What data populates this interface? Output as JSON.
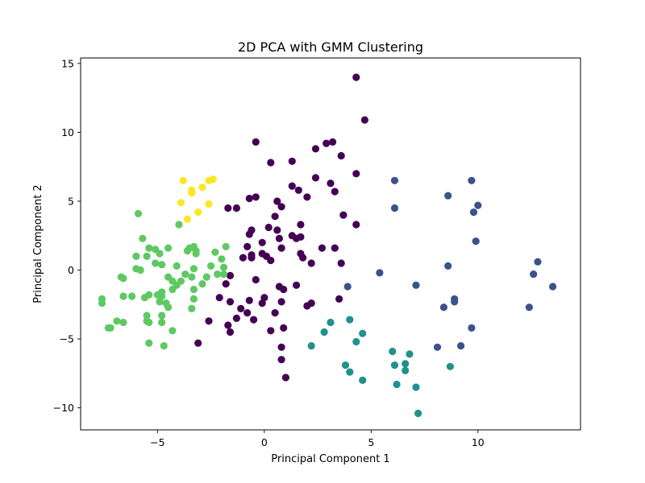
{
  "chart_data": {
    "type": "scatter",
    "title": "2D PCA with GMM Clustering",
    "xlabel": "Principal Component 1",
    "ylabel": "Principal Component 2",
    "xlim": [
      -8.6,
      14.8
    ],
    "ylim": [
      -11.6,
      15.4
    ],
    "xticks": [
      -5,
      0,
      5,
      10
    ],
    "yticks": [
      -10,
      -5,
      0,
      5,
      10,
      15
    ],
    "xtick_labels": [
      "−5",
      "0",
      "5",
      "10"
    ],
    "ytick_labels": [
      "−10",
      "−5",
      "0",
      "5",
      "10",
      "15"
    ],
    "grid": false,
    "legend": "none",
    "series": [
      {
        "color": "#440154",
        "points": [
          [
            4.3,
            14.0
          ],
          [
            4.7,
            10.9
          ],
          [
            -0.4,
            9.3
          ],
          [
            2.9,
            9.2
          ],
          [
            3.2,
            9.3
          ],
          [
            2.4,
            8.8
          ],
          [
            3.6,
            8.3
          ],
          [
            0.3,
            7.8
          ],
          [
            1.3,
            7.9
          ],
          [
            3.1,
            6.3
          ],
          [
            4.3,
            7.0
          ],
          [
            2.4,
            6.7
          ],
          [
            1.3,
            6.1
          ],
          [
            1.6,
            5.8
          ],
          [
            3.3,
            5.7
          ],
          [
            2.0,
            5.3
          ],
          [
            -0.7,
            5.2
          ],
          [
            -0.4,
            5.3
          ],
          [
            0.6,
            5.0
          ],
          [
            0.8,
            4.6
          ],
          [
            -1.3,
            4.5
          ],
          [
            -1.7,
            4.5
          ],
          [
            0.5,
            3.9
          ],
          [
            3.7,
            4.0
          ],
          [
            4.3,
            3.3
          ],
          [
            1.7,
            3.3
          ],
          [
            0.2,
            3.1
          ],
          [
            -0.6,
            2.9
          ],
          [
            0.6,
            2.9
          ],
          [
            -0.7,
            2.6
          ],
          [
            1.3,
            2.5
          ],
          [
            0.7,
            2.3
          ],
          [
            1.5,
            2.3
          ],
          [
            1.7,
            2.4
          ],
          [
            -0.1,
            2.0
          ],
          [
            -0.8,
            1.7
          ],
          [
            0.8,
            1.6
          ],
          [
            2.7,
            1.6
          ],
          [
            3.3,
            1.6
          ],
          [
            1.7,
            1.2
          ],
          [
            -0.6,
            1.1
          ],
          [
            -0.1,
            1.2
          ],
          [
            0.1,
            1.0
          ],
          [
            -1.0,
            0.9
          ],
          [
            -0.6,
            0.9
          ],
          [
            1.8,
            0.9
          ],
          [
            0.3,
            0.7
          ],
          [
            2.2,
            0.5
          ],
          [
            3.6,
            0.5
          ],
          [
            -1.6,
            -0.4
          ],
          [
            -1.8,
            -1.0
          ],
          [
            -0.4,
            -0.7
          ],
          [
            0.7,
            -1.2
          ],
          [
            0.9,
            -1.4
          ],
          [
            1.5,
            -1.1
          ],
          [
            3.5,
            -2.1
          ],
          [
            -2.1,
            -2.0
          ],
          [
            0.0,
            -2.0
          ],
          [
            -0.7,
            -2.2
          ],
          [
            -1.6,
            -2.3
          ],
          [
            0.8,
            -2.3
          ],
          [
            -1.1,
            -2.8
          ],
          [
            -0.1,
            -2.4
          ],
          [
            2.0,
            -2.6
          ],
          [
            2.2,
            -2.4
          ],
          [
            0.5,
            -3.1
          ],
          [
            -1.7,
            -4.0
          ],
          [
            -2.6,
            -3.7
          ],
          [
            -1.3,
            -3.5
          ],
          [
            -0.8,
            -3.1
          ],
          [
            -0.5,
            -3.6
          ],
          [
            -1.6,
            -4.5
          ],
          [
            0.9,
            -4.2
          ],
          [
            0.3,
            -4.4
          ],
          [
            0.8,
            -5.6
          ],
          [
            -3.1,
            -5.3
          ],
          [
            0.8,
            -6.5
          ],
          [
            1.0,
            -7.8
          ]
        ]
      },
      {
        "color": "#3b528b",
        "points": [
          [
            6.1,
            6.5
          ],
          [
            9.7,
            6.5
          ],
          [
            8.6,
            5.4
          ],
          [
            10.0,
            4.7
          ],
          [
            6.1,
            4.5
          ],
          [
            9.8,
            4.2
          ],
          [
            9.9,
            2.1
          ],
          [
            12.8,
            0.6
          ],
          [
            8.6,
            0.3
          ],
          [
            5.4,
            -0.2
          ],
          [
            12.6,
            -0.3
          ],
          [
            3.9,
            -1.2
          ],
          [
            7.1,
            -1.1
          ],
          [
            13.5,
            -1.2
          ],
          [
            8.9,
            -2.1
          ],
          [
            8.9,
            -2.3
          ],
          [
            8.4,
            -2.7
          ],
          [
            12.4,
            -2.7
          ],
          [
            9.7,
            -4.2
          ],
          [
            9.2,
            -5.5
          ],
          [
            8.1,
            -5.6
          ]
        ]
      },
      {
        "color": "#21918c",
        "points": [
          [
            4.0,
            -3.6
          ],
          [
            3.1,
            -3.8
          ],
          [
            4.6,
            -4.6
          ],
          [
            2.8,
            -4.5
          ],
          [
            4.3,
            -5.2
          ],
          [
            2.2,
            -5.5
          ],
          [
            6.0,
            -5.9
          ],
          [
            6.8,
            -6.1
          ],
          [
            3.8,
            -6.9
          ],
          [
            6.1,
            -6.9
          ],
          [
            6.6,
            -6.8
          ],
          [
            8.7,
            -7.0
          ],
          [
            6.6,
            -7.3
          ],
          [
            4.0,
            -7.4
          ],
          [
            4.6,
            -8.0
          ],
          [
            6.2,
            -8.3
          ],
          [
            7.1,
            -8.5
          ],
          [
            7.2,
            -10.4
          ]
        ]
      },
      {
        "color": "#5ec962",
        "points": [
          [
            -5.9,
            4.1
          ],
          [
            -4.0,
            3.3
          ],
          [
            -5.7,
            2.3
          ],
          [
            -5.4,
            1.6
          ],
          [
            -5.1,
            1.5
          ],
          [
            -4.5,
            1.6
          ],
          [
            -3.5,
            1.6
          ],
          [
            -3.3,
            1.7
          ],
          [
            -1.8,
            1.7
          ],
          [
            -3.6,
            1.4
          ],
          [
            -3.2,
            1.4
          ],
          [
            -2.3,
            1.3
          ],
          [
            -6.0,
            1.0
          ],
          [
            -5.5,
            1.0
          ],
          [
            -4.9,
            1.2
          ],
          [
            -3.2,
            1.2
          ],
          [
            -2.0,
            0.8
          ],
          [
            -5.1,
            0.5
          ],
          [
            -4.8,
            0.4
          ],
          [
            -4.1,
            0.3
          ],
          [
            -2.5,
            0.3
          ],
          [
            -1.9,
            0.2
          ],
          [
            -6.0,
            0.1
          ],
          [
            -5.8,
            0.0
          ],
          [
            -3.3,
            0.1
          ],
          [
            -2.2,
            -0.3
          ],
          [
            -1.9,
            -0.3
          ],
          [
            -3.7,
            -0.3
          ],
          [
            -4.5,
            -0.5
          ],
          [
            -3.4,
            -0.5
          ],
          [
            -2.7,
            -0.5
          ],
          [
            -4.3,
            -0.8
          ],
          [
            -3.9,
            -0.8
          ],
          [
            -6.7,
            -0.5
          ],
          [
            -6.6,
            -0.6
          ],
          [
            -4.1,
            -1.1
          ],
          [
            -2.9,
            -1.0
          ],
          [
            -4.3,
            -1.4
          ],
          [
            -3.3,
            -1.4
          ],
          [
            -6.2,
            -1.9
          ],
          [
            -5.6,
            -2.0
          ],
          [
            -5.4,
            -1.8
          ],
          [
            -5.0,
            -1.8
          ],
          [
            -4.8,
            -1.6
          ],
          [
            -4.8,
            -1.9
          ],
          [
            -3.3,
            -2.1
          ],
          [
            -7.6,
            -2.1
          ],
          [
            -7.6,
            -2.4
          ],
          [
            -4.9,
            -2.3
          ],
          [
            -4.6,
            -2.4
          ],
          [
            -4.5,
            -2.7
          ],
          [
            -3.4,
            -2.8
          ],
          [
            -5.5,
            -3.3
          ],
          [
            -4.8,
            -3.3
          ],
          [
            -5.5,
            -3.7
          ],
          [
            -5.4,
            -3.8
          ],
          [
            -6.9,
            -3.7
          ],
          [
            -6.6,
            -3.8
          ],
          [
            -4.8,
            -3.8
          ],
          [
            -7.3,
            -4.2
          ],
          [
            -7.2,
            -4.2
          ],
          [
            -4.3,
            -4.4
          ],
          [
            -5.4,
            -5.3
          ],
          [
            -4.7,
            -5.5
          ],
          [
            -6.6,
            -1.9
          ]
        ]
      },
      {
        "color": "#fde725",
        "points": [
          [
            -3.8,
            6.5
          ],
          [
            -2.6,
            6.5
          ],
          [
            -2.4,
            6.6
          ],
          [
            -2.9,
            6.0
          ],
          [
            -3.4,
            5.8
          ],
          [
            -3.4,
            5.6
          ],
          [
            -3.9,
            4.9
          ],
          [
            -2.6,
            4.8
          ],
          [
            -3.1,
            4.2
          ],
          [
            -3.6,
            3.7
          ]
        ]
      }
    ]
  }
}
